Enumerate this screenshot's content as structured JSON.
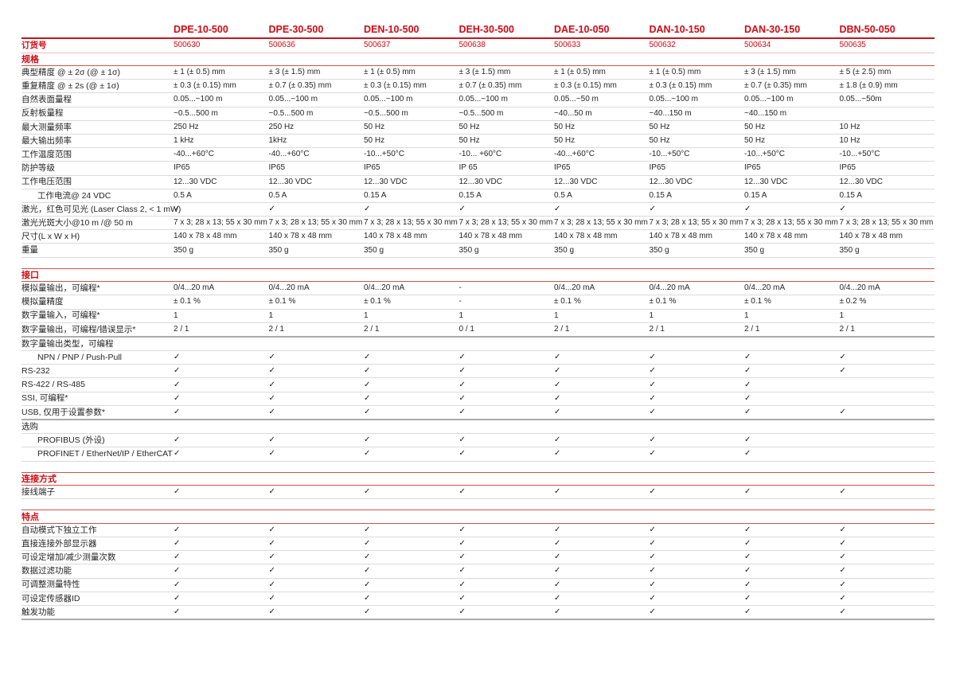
{
  "order_label": "订货号",
  "products": [
    {
      "name": "DPE-10-500",
      "order": "500630"
    },
    {
      "name": "DPE-30-500",
      "order": "500636"
    },
    {
      "name": "DEN-10-500",
      "order": "500637"
    },
    {
      "name": "DEH-30-500",
      "order": "500638"
    },
    {
      "name": "DAE-10-050",
      "order": "500633"
    },
    {
      "name": "DAN-10-150",
      "order": "500632"
    },
    {
      "name": "DAN-30-150",
      "order": "500634"
    },
    {
      "name": "DBN-50-050",
      "order": "500635"
    }
  ],
  "colors": {
    "accent_red": "#d10a14",
    "section_line_red": "#d4504c",
    "row_line_gray": "#dadada",
    "boundary_line_gray": "#ababab",
    "text": "#262626"
  },
  "check_glyph": "✓",
  "sections": [
    {
      "title": "规格",
      "rows": [
        {
          "label": "典型精度 @ ± 2σ (@ ± 1σ)",
          "values": [
            "± 1 (± 0.5) mm",
            "± 3 (± 1.5) mm",
            "± 1 (± 0.5) mm",
            "± 3 (± 1.5) mm",
            "± 1 (± 0.5) mm",
            "± 1 (± 0.5) mm",
            "± 3 (± 1.5) mm",
            "± 5 (± 2.5) mm"
          ]
        },
        {
          "label": "重复精度 @ ± 2s (@ ± 1σ)",
          "values": [
            "± 0.3 (± 0.15) mm",
            "± 0.7 (± 0.35) mm",
            "± 0.3 (± 0.15) mm",
            "± 0.7 (± 0.35) mm",
            "± 0.3 (± 0.15) mm",
            "± 0.3 (± 0.15) mm",
            "± 0.7 (± 0.35) mm",
            "± 1.8 (± 0.9) mm"
          ]
        },
        {
          "label": "自然表面量程",
          "values": [
            "0.05...~100 m",
            "0.05...~100 m",
            "0.05...~100 m",
            "0.05...~100 m",
            "0.05...~50 m",
            "0.05...~100 m",
            "0.05...~100 m",
            "0.05...~50m"
          ]
        },
        {
          "label": "反射板量程",
          "values": [
            "~0.5...500 m",
            "~0.5...500 m",
            "~0.5...500 m",
            "~0.5...500 m",
            "~40...50 m",
            "~40...150 m",
            "~40...150 m",
            ""
          ]
        },
        {
          "label": "最大测量频率",
          "values": [
            "250 Hz",
            "250 Hz",
            "50 Hz",
            "50 Hz",
            "50 Hz",
            "50 Hz",
            "50 Hz",
            "10 Hz"
          ]
        },
        {
          "label": "最大输出频率",
          "values": [
            "1 kHz",
            "1kHz",
            "50 Hz",
            "50 Hz",
            "50 Hz",
            "50 Hz",
            "50 Hz",
            "10 Hz"
          ]
        },
        {
          "label": "工作温度范围",
          "values": [
            "-40...+60°C",
            "-40...+60°C",
            "-10...+50°C",
            "-10... +60°C",
            "-40...+60°C",
            "-10...+50°C",
            "-10...+50°C",
            "-10...+50°C"
          ]
        },
        {
          "label": "防护等级",
          "values": [
            "IP65",
            "IP65",
            "IP65",
            "IP 65",
            "IP65",
            "IP65",
            "IP65",
            "IP65"
          ]
        },
        {
          "label": "工作电压范围",
          "values": [
            "12...30 VDC",
            "12...30 VDC",
            "12...30 VDC",
            "12...30 VDC",
            "12...30 VDC",
            "12...30 VDC",
            "12...30 VDC",
            "12...30 VDC"
          ]
        },
        {
          "label": "工作电流@ 24 VDC",
          "indent": true,
          "values": [
            "0.5 A",
            "0.5 A",
            "0.15 A",
            "0.15 A",
            "0.5 A",
            "0.15 A",
            "0.15 A",
            "0.15 A"
          ]
        },
        {
          "label": "激光，红色可见光 (Laser Class 2, < 1 mW)",
          "values": [
            "✓",
            "✓",
            "✓",
            "✓",
            "✓",
            "✓",
            "✓",
            "✓"
          ]
        },
        {
          "label": "激光光斑大小@10 m /@ 50 m",
          "values": [
            "7 x 3; 28 x 13; 55 x 30 mm",
            "7 x 3; 28 x 13; 55 x 30 mm",
            "7 x 3; 28 x 13; 55 x 30 mm",
            "7 x 3; 28 x 13; 55 x 30 mm",
            "7 x 3; 28 x 13; 55 x 30 mm",
            "7 x 3; 28 x 13; 55 x 30 mm",
            "7 x 3; 28 x 13; 55 x 30 mm",
            "7 x 3; 28 x 13; 55 x 30 mm"
          ]
        },
        {
          "label": "尺寸(L x W x H)",
          "values": [
            "140 x 78 x 48 mm",
            "140 x 78 x 48 mm",
            "140 x 78 x 48 mm",
            "140 x 78 x 48 mm",
            "140 x 78 x 48 mm",
            "140 x 78 x 48 mm",
            "140 x 78 x 48 mm",
            "140 x 78 x 48 mm"
          ]
        },
        {
          "label": "重量",
          "values": [
            "350 g",
            "350 g",
            "350 g",
            "350 g",
            "350 g",
            "350 g",
            "350 g",
            "350 g"
          ]
        }
      ]
    },
    {
      "title": "接口",
      "rows": [
        {
          "label": "模拟量输出，可编程*",
          "values": [
            "0/4...20 mA",
            "0/4...20 mA",
            "0/4...20 mA",
            "-",
            "0/4...20 mA",
            "0/4...20 mA",
            "0/4...20 mA",
            "0/4...20 mA"
          ]
        },
        {
          "label": "模拟量精度",
          "values": [
            "± 0.1 %",
            "± 0.1 %",
            "± 0.1 %",
            "-",
            "± 0.1 %",
            "± 0.1 %",
            "± 0.1 %",
            "± 0.2 %"
          ]
        },
        {
          "label": "数字量输入，可编程*",
          "values": [
            "1",
            "1",
            "1",
            "1",
            "1",
            "1",
            "1",
            "1"
          ]
        },
        {
          "label": "数字量输出，可编程/错误显示*",
          "heavy_below": true,
          "values": [
            "2 / 1",
            "2 / 1",
            "2 / 1",
            "0 / 1",
            "2 / 1",
            "2 / 1",
            "2 / 1",
            "2 / 1"
          ]
        },
        {
          "label": "数字量输出类型，可编程",
          "values": null
        },
        {
          "label": "NPN / PNP / Push-Pull",
          "indent": true,
          "values": [
            "✓",
            "✓",
            "✓",
            "✓",
            "✓",
            "✓",
            "✓",
            "✓"
          ]
        },
        {
          "label": "RS-232",
          "values": [
            "✓",
            "✓",
            "✓",
            "✓",
            "✓",
            "✓",
            "✓",
            "✓"
          ]
        },
        {
          "label": "RS-422 / RS-485",
          "values": [
            "✓",
            "✓",
            "✓",
            "✓",
            "✓",
            "✓",
            "✓",
            ""
          ]
        },
        {
          "label": "SSI, 可编程*",
          "values": [
            "✓",
            "✓",
            "✓",
            "✓",
            "✓",
            "✓",
            "✓",
            ""
          ]
        },
        {
          "label": "USB, 仅用于设置参数*",
          "heavy_below": true,
          "values": [
            "✓",
            "✓",
            "✓",
            "✓",
            "✓",
            "✓",
            "✓",
            "✓"
          ]
        },
        {
          "label": "选购",
          "values": null
        },
        {
          "label": "PROFIBUS (外设)",
          "indent": true,
          "values": [
            "✓",
            "✓",
            "✓",
            "✓",
            "✓",
            "✓",
            "✓",
            ""
          ]
        },
        {
          "label": "PROFINET / EtherNet/IP / EtherCAT",
          "indent": true,
          "values": [
            "✓",
            "✓",
            "✓",
            "✓",
            "✓",
            "✓",
            "✓",
            ""
          ]
        }
      ]
    },
    {
      "title": "连接方式",
      "rows": [
        {
          "label": "接线端子",
          "values": [
            "✓",
            "✓",
            "✓",
            "✓",
            "✓",
            "✓",
            "✓",
            "✓"
          ]
        }
      ]
    },
    {
      "title": "特点",
      "rows": [
        {
          "label": "自动模式下独立工作",
          "values": [
            "✓",
            "✓",
            "✓",
            "✓",
            "✓",
            "✓",
            "✓",
            "✓"
          ]
        },
        {
          "label": "直接连接外部显示器",
          "values": [
            "✓",
            "✓",
            "✓",
            "✓",
            "✓",
            "✓",
            "✓",
            "✓"
          ]
        },
        {
          "label": "可设定增加/减少测量次数",
          "values": [
            "✓",
            "✓",
            "✓",
            "✓",
            "✓",
            "✓",
            "✓",
            "✓"
          ]
        },
        {
          "label": "数据过滤功能",
          "values": [
            "✓",
            "✓",
            "✓",
            "✓",
            "✓",
            "✓",
            "✓",
            "✓"
          ]
        },
        {
          "label": "可调整测量特性",
          "values": [
            "✓",
            "✓",
            "✓",
            "✓",
            "✓",
            "✓",
            "✓",
            "✓"
          ]
        },
        {
          "label": "可设定传感器ID",
          "values": [
            "✓",
            "✓",
            "✓",
            "✓",
            "✓",
            "✓",
            "✓",
            "✓"
          ]
        },
        {
          "label": "触发功能",
          "heavy_below": true,
          "values": [
            "✓",
            "✓",
            "✓",
            "✓",
            "✓",
            "✓",
            "✓",
            "✓"
          ]
        }
      ]
    }
  ]
}
